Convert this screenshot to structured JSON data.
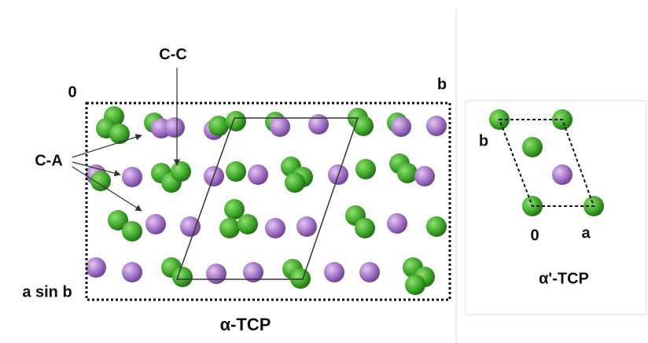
{
  "left_panel": {
    "title": "α-TCP",
    "labels": {
      "cc": "C-C",
      "origin": "0",
      "b_axis": "b",
      "ca": "C-A",
      "a_axis": "a sin b"
    }
  },
  "right_panel": {
    "title": "α'-TCP",
    "labels": {
      "b_axis": "b",
      "origin": "0",
      "a_axis": "a"
    }
  }
}
